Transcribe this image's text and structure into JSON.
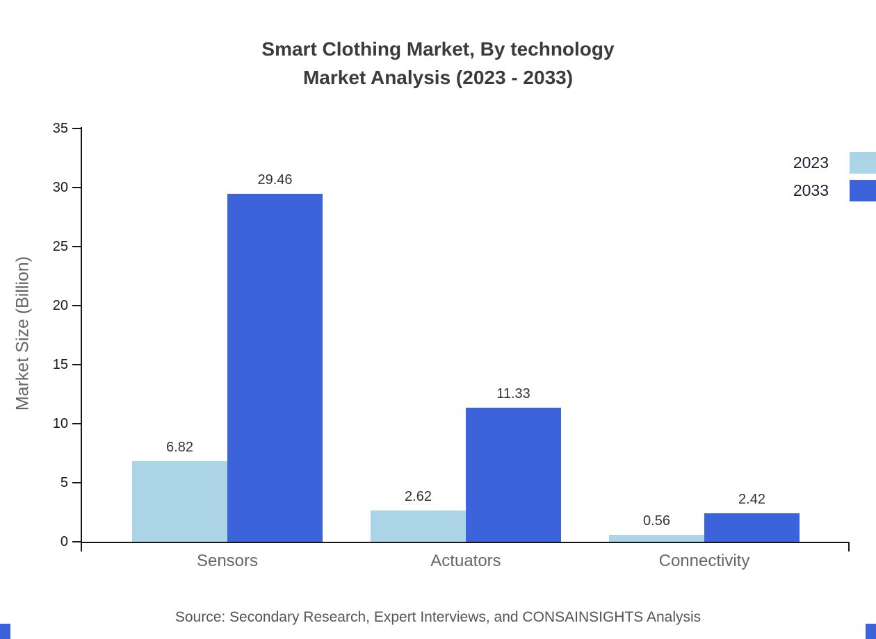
{
  "title": {
    "line1": "Smart Clothing Market, By technology",
    "line2": "Market Analysis (2023 - 2033)"
  },
  "chart_data": {
    "type": "bar",
    "title": "Smart Clothing Market, By technology — Market Analysis (2023 - 2033)",
    "categories": [
      "Sensors",
      "Actuators",
      "Connectivity"
    ],
    "series": [
      {
        "name": "2023",
        "color": "#abd5e6",
        "values": [
          6.82,
          2.62,
          0.56
        ]
      },
      {
        "name": "2033",
        "color": "#3d63db",
        "values": [
          29.46,
          11.33,
          2.42
        ]
      }
    ],
    "xlabel": "",
    "ylabel": "Market Size (Billion)",
    "ylim": [
      0,
      35
    ],
    "ytick_step": 5,
    "grid": false,
    "legend_position": "top-right",
    "value_labels": true
  },
  "source": "Source: Secondary Research, Expert Interviews, and CONSAINSIGHTS Analysis",
  "colors": {
    "corner_accent": "#3d63db",
    "axis": "#151515"
  }
}
